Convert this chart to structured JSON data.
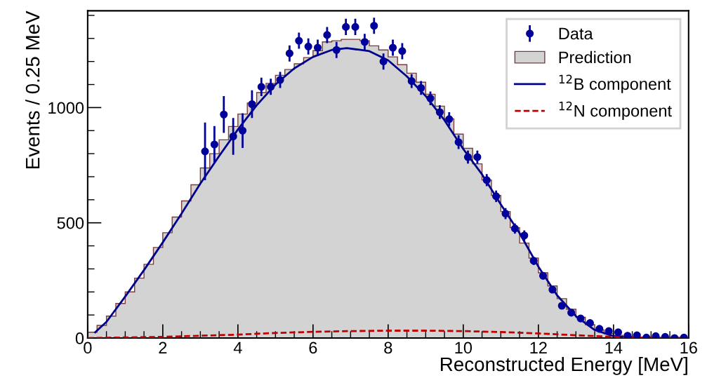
{
  "chart_data": {
    "type": "histogram",
    "xlabel": "Reconstructed Energy [MeV]",
    "ylabel": "Events / 0.25 MeV",
    "xlim": [
      0,
      16
    ],
    "ylim": [
      0,
      1420
    ],
    "xticks": [
      0,
      2,
      4,
      6,
      8,
      10,
      12,
      14,
      16
    ],
    "yticks": [
      0,
      500,
      1000
    ],
    "legend": "top right",
    "grid": false,
    "series": [
      {
        "name": "Prediction",
        "color": "#d3d3d3",
        "bins": [
          0,
          0.25,
          0.5,
          0.75,
          1,
          1.25,
          1.5,
          1.75,
          2,
          2.25,
          2.5,
          2.75,
          3,
          3.25,
          3.5,
          3.75,
          4,
          4.25,
          4.5,
          4.75,
          5,
          5.25,
          5.5,
          5.75,
          6,
          6.25,
          6.5,
          6.75,
          7,
          7.25,
          7.5,
          7.75,
          8,
          8.25,
          8.5,
          8.75,
          9,
          9.25,
          9.5,
          9.75,
          10,
          10.25,
          10.5,
          10.75,
          11,
          11.25,
          11.5,
          11.75,
          12,
          12.25,
          12.5,
          12.75,
          13,
          13.25,
          13.5,
          13.75,
          14,
          14.25,
          14.5,
          14.75,
          15,
          15.25,
          15.5,
          15.75,
          16
        ],
        "values": [
          25,
          55,
          95,
          150,
          200,
          260,
          320,
          393,
          457,
          525,
          595,
          665,
          738,
          800,
          860,
          918,
          972,
          1020,
          1065,
          1105,
          1140,
          1165,
          1190,
          1217,
          1247,
          1285,
          1290,
          1296,
          1296,
          1290,
          1268,
          1250,
          1220,
          1186,
          1149,
          1110,
          1058,
          1006,
          951,
          885,
          823,
          756,
          686,
          619,
          549,
          479,
          412,
          347,
          283,
          226,
          171,
          125,
          90,
          58,
          35,
          20,
          12,
          7,
          4,
          2,
          1,
          1,
          0,
          0
        ]
      },
      {
        "type": "line",
        "name": "$^{12}$B component",
        "color": "#00008b",
        "line_style": "solid",
        "x": [
          0.2,
          0.5,
          1,
          1.5,
          2,
          2.5,
          3,
          3.5,
          4,
          4.5,
          5,
          5.5,
          6,
          6.5,
          6.9,
          7.5,
          8,
          8.5,
          9,
          9.5,
          10,
          10.5,
          11,
          11.5,
          12,
          12.5,
          13,
          13.5,
          14,
          14.5,
          15,
          16
        ],
        "values": [
          25,
          70,
          180,
          295,
          415,
          540,
          670,
          790,
          905,
          1010,
          1100,
          1170,
          1220,
          1250,
          1258,
          1245,
          1205,
          1135,
          1050,
          945,
          820,
          710,
          580,
          455,
          310,
          185,
          95,
          35,
          8,
          1,
          0,
          0
        ]
      },
      {
        "type": "line",
        "name": "$^{12}$N component",
        "color": "#c00000",
        "line_style": "dashed",
        "x": [
          0,
          2,
          4,
          5,
          6,
          7,
          8,
          9,
          10,
          11,
          12,
          13,
          14,
          15,
          16
        ],
        "values": [
          0,
          5,
          15,
          22,
          27,
          30,
          32,
          32,
          30,
          26,
          20,
          12,
          5,
          1,
          0
        ]
      },
      {
        "type": "scatter",
        "name": "Data",
        "color": "#00009b",
        "marker": "circle",
        "x": [
          3.125,
          3.375,
          3.625,
          3.875,
          4.125,
          4.375,
          4.625,
          4.875,
          5.125,
          5.375,
          5.625,
          5.875,
          6.125,
          6.375,
          6.625,
          6.875,
          7.125,
          7.375,
          7.625,
          7.875,
          8.125,
          8.375,
          8.625,
          8.875,
          9.125,
          9.375,
          9.625,
          9.875,
          10.125,
          10.375,
          10.625,
          10.875,
          11.125,
          11.375,
          11.625,
          11.875,
          12.125,
          12.375,
          12.625,
          12.875,
          13.125,
          13.375,
          13.625,
          13.875,
          14.125,
          14.375,
          14.625,
          14.875,
          15.125,
          15.375,
          15.625,
          15.875
        ],
        "values": [
          810,
          840,
          970,
          875,
          900,
          1015,
          1090,
          1090,
          1120,
          1235,
          1290,
          1265,
          1260,
          1315,
          1250,
          1350,
          1350,
          1285,
          1355,
          1200,
          1260,
          1245,
          1115,
          1085,
          1040,
          980,
          950,
          850,
          785,
          785,
          685,
          615,
          540,
          475,
          445,
          335,
          270,
          210,
          140,
          110,
          85,
          65,
          40,
          30,
          25,
          10,
          12,
          2,
          8,
          5,
          0,
          2
        ],
        "errors": [
          125,
          80,
          80,
          80,
          75,
          60,
          40,
          35,
          35,
          35,
          35,
          35,
          35,
          35,
          35,
          35,
          35,
          35,
          35,
          35,
          35,
          35,
          30,
          30,
          30,
          30,
          30,
          30,
          28,
          28,
          26,
          25,
          24,
          22,
          22,
          18,
          16,
          14,
          null,
          null,
          null,
          null,
          null,
          null,
          null,
          null,
          null,
          null,
          null,
          null,
          null,
          null
        ]
      }
    ]
  }
}
